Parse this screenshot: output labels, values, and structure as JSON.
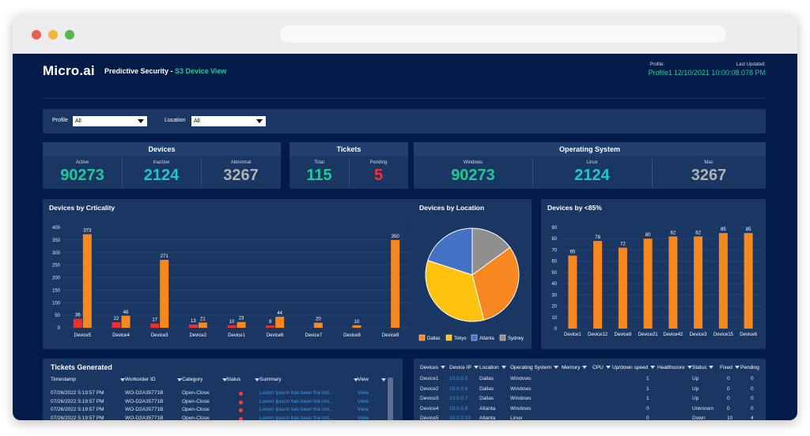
{
  "colors": {
    "orange": "#f7881f",
    "red": "#ee2f2b",
    "green": "#22c997",
    "cyan": "#1ec9c4",
    "gray": "#b1b1b1",
    "pending": "#ff2d2d"
  },
  "header": {
    "logo": "Micro.ai",
    "title_prefix": "Predictive Security - ",
    "title_accent": "S3 Device View",
    "profile_label": "Profile:",
    "profile_value": "Profile1",
    "updated_label": "Last Updated:",
    "updated_value": "12/10/2021 10:00:08.078 PM"
  },
  "filters": {
    "profile_label": "Profile",
    "profile_value": "All",
    "location_label": "Location",
    "location_value": "All"
  },
  "devices": {
    "title": "Devices",
    "active_label": "Active",
    "active": "90273",
    "inactive_label": "Inactive",
    "inactive": "2124",
    "abnormal_label": "Abnormal",
    "abnormal": "3267"
  },
  "tickets": {
    "title": "Tickets",
    "total_label": "Total",
    "total": "115",
    "pending_label": "Pending",
    "pending": "5"
  },
  "os": {
    "title": "Operating System",
    "windows_label": "Windows",
    "windows": "90273",
    "linux_label": "Linux",
    "linux": "2124",
    "mac_label": "Mac",
    "mac": "3267"
  },
  "chart_data": [
    {
      "type": "bar",
      "title": "Devices by Crticality",
      "categories": [
        "Device5",
        "Device4",
        "Device3",
        "Device2",
        "Device1",
        "Device6",
        "Device7",
        "Device8",
        "Device9"
      ],
      "series": [
        {
          "values": [
            36,
            22,
            17,
            13,
            10,
            9,
            0,
            0,
            0
          ]
        },
        {
          "values": [
            373,
            48,
            271,
            21,
            23,
            44,
            20,
            10,
            350
          ]
        }
      ],
      "yticks": [
        0,
        50,
        100,
        150,
        200,
        250,
        300,
        350,
        400
      ],
      "ylim": [
        0,
        400
      ]
    },
    {
      "type": "pie",
      "title": "Devices by Location",
      "labels": [
        "Dallas",
        "Tokyo",
        "Atlanta",
        "Sydney"
      ],
      "values": [
        31,
        34,
        20,
        15
      ],
      "colors": [
        "#f7881f",
        "#ffc20e",
        "#4472c4",
        "#8f8f8f"
      ],
      "legend": "bottom"
    },
    {
      "type": "bar",
      "title": "Devices by <85%",
      "categories": [
        "Device1",
        "Device12",
        "Device8",
        "Device21",
        "Device42",
        "Device3",
        "Device15",
        "Device6"
      ],
      "values": [
        65,
        78,
        72,
        80,
        82,
        82,
        85,
        85
      ],
      "labels": [
        "65",
        "78",
        "72",
        "80",
        "82",
        "82",
        "85",
        "85"
      ],
      "yticks": [
        0,
        10,
        20,
        30,
        40,
        50,
        60,
        70,
        80,
        90
      ],
      "ylim": [
        0,
        90
      ]
    }
  ],
  "tickets_table": {
    "title": "Tickets Generated",
    "columns": [
      "Timestamp",
      "Workorder ID",
      "Category",
      "Status",
      "Summary",
      "View"
    ],
    "rows": [
      [
        "07/26/2022 5:19:57 PM",
        "WO-D2A35771B",
        "Open-Close",
        "Lorem Ipsum has been the ind...",
        "View"
      ],
      [
        "07/26/2022 5:19:57 PM",
        "WO-D2A35771B",
        "Open-Close",
        "Lorem Ipsum has been the ind...",
        "View"
      ],
      [
        "07/26/2022 5:19:57 PM",
        "WO-D2A35771B",
        "Open-Close",
        "Lorem Ipsum has been the ind...",
        "View"
      ],
      [
        "07/26/2022 5:19:57 PM",
        "WO-D2A35771B",
        "Open-Close",
        "Lorem Ipsum has been the ind...",
        "View"
      ],
      [
        "07/26/2022 5:19:57 PM",
        "WO-D2A35771B",
        "Open-Close",
        "Lorem Ipsum has been the ind...",
        "View"
      ],
      [
        "07/26/2022 5:19:57 PM",
        "WO-D2A35771B",
        "Open-Close",
        "Lorem Ipsum has been the ind...",
        "View"
      ]
    ]
  },
  "devices_table": {
    "columns": [
      "Devices",
      "Device IP",
      "Location",
      "Operating System",
      "Memory",
      "CPU",
      "Up/down speed",
      "Healthscore",
      "Status",
      "Fixed",
      "Pending"
    ],
    "rows": [
      [
        "Device1",
        "10.0.0.5",
        "Dallas",
        "Windows",
        "1",
        "Up",
        "0",
        "0"
      ],
      [
        "Device2",
        "10.0.0.6",
        "Dallas",
        "Windows",
        "1",
        "Up",
        "0",
        "0"
      ],
      [
        "Device3",
        "10.0.0.7",
        "Dallas",
        "Windows",
        "1",
        "Up",
        "0",
        "0"
      ],
      [
        "Device4",
        "10.0.0.8",
        "Atlanta",
        "Windows",
        "0",
        "Unknown",
        "0",
        "0"
      ],
      [
        "Device5",
        "10.0.0.10",
        "Atlanta",
        "Linux",
        "0",
        "Down",
        "10",
        "4"
      ],
      [
        "Device6",
        "10.0.0.9",
        "Atlanta",
        "Linux",
        "1",
        "Down",
        "15",
        "3"
      ]
    ]
  }
}
